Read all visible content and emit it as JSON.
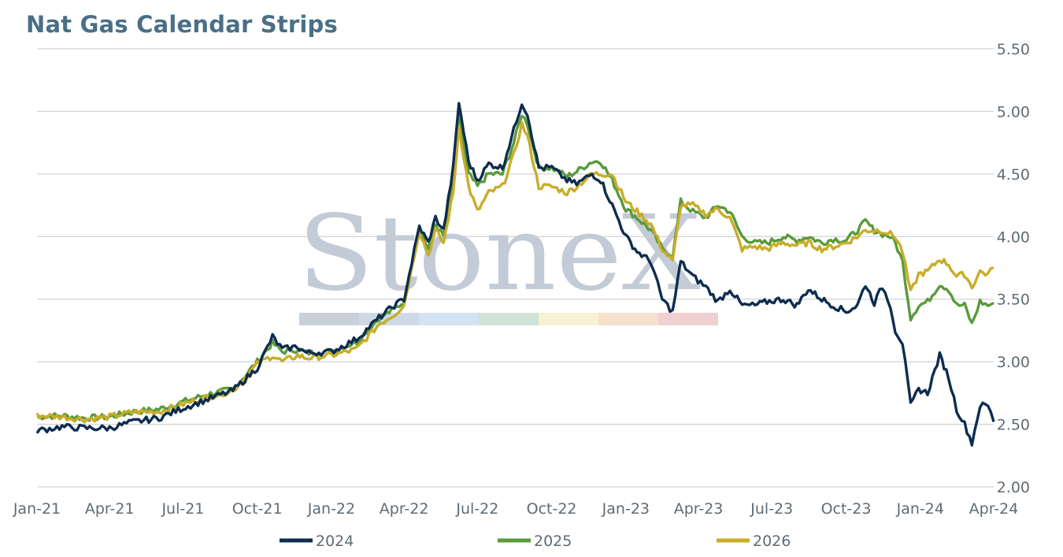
{
  "title": "Nat Gas Calendar Strips",
  "watermark": {
    "brand": "StoneX"
  },
  "colors": {
    "s2024": "#0d2d4f",
    "s2025": "#5a9a3c",
    "s2026": "#c8ad2a",
    "grid": "#d0d4d8",
    "watermark_bar": [
      "#c9d0da",
      "#cfd9e6",
      "#d3e3f3",
      "#d1e3d6",
      "#f6f2d4",
      "#f6e1cc",
      "#f1d0d2"
    ]
  },
  "chart_data": {
    "type": "line",
    "title": "Nat Gas Calendar Strips",
    "xlabel": "",
    "ylabel": "",
    "x_ticks": [
      "Jan-21",
      "Apr-21",
      "Jul-21",
      "Oct-21",
      "Jan-22",
      "Apr-22",
      "Jul-22",
      "Oct-22",
      "Jan-23",
      "Apr-23",
      "Jul-23",
      "Oct-23",
      "Jan-24",
      "Apr-24"
    ],
    "y_ticks": [
      "2.00",
      "2.50",
      "3.00",
      "3.50",
      "4.00",
      "4.50",
      "5.00",
      "5.50"
    ],
    "ylim": [
      2.0,
      5.5
    ],
    "y_axis_side": "right",
    "grid": true,
    "legend_position": "bottom",
    "series": [
      {
        "name": "2024",
        "points": [
          [
            "2021-01-01",
            2.45
          ],
          [
            "2021-02-01",
            2.48
          ],
          [
            "2021-03-01",
            2.47
          ],
          [
            "2021-04-01",
            2.47
          ],
          [
            "2021-05-01",
            2.52
          ],
          [
            "2021-06-01",
            2.55
          ],
          [
            "2021-07-01",
            2.63
          ],
          [
            "2021-08-01",
            2.7
          ],
          [
            "2021-09-01",
            2.77
          ],
          [
            "2021-10-01",
            2.95
          ],
          [
            "2021-10-20",
            3.2
          ],
          [
            "2021-11-01",
            3.1
          ],
          [
            "2021-11-20",
            3.12
          ],
          [
            "2021-12-01",
            3.07
          ],
          [
            "2022-01-01",
            3.08
          ],
          [
            "2022-02-01",
            3.18
          ],
          [
            "2022-03-01",
            3.35
          ],
          [
            "2022-03-20",
            3.45
          ],
          [
            "2022-04-01",
            3.5
          ],
          [
            "2022-04-20",
            4.08
          ],
          [
            "2022-05-01",
            3.95
          ],
          [
            "2022-05-10",
            4.15
          ],
          [
            "2022-05-20",
            4.05
          ],
          [
            "2022-06-01",
            4.55
          ],
          [
            "2022-06-08",
            5.07
          ],
          [
            "2022-06-20",
            4.6
          ],
          [
            "2022-07-01",
            4.45
          ],
          [
            "2022-07-15",
            4.58
          ],
          [
            "2022-08-01",
            4.55
          ],
          [
            "2022-08-15",
            4.85
          ],
          [
            "2022-08-25",
            5.07
          ],
          [
            "2022-09-01",
            4.98
          ],
          [
            "2022-09-15",
            4.55
          ],
          [
            "2022-10-01",
            4.55
          ],
          [
            "2022-10-20",
            4.45
          ],
          [
            "2022-11-01",
            4.42
          ],
          [
            "2022-11-20",
            4.5
          ],
          [
            "2022-12-01",
            4.45
          ],
          [
            "2022-12-15",
            4.25
          ],
          [
            "2023-01-01",
            4.0
          ],
          [
            "2023-01-15",
            3.88
          ],
          [
            "2023-02-01",
            3.8
          ],
          [
            "2023-02-15",
            3.5
          ],
          [
            "2023-02-28",
            3.4
          ],
          [
            "2023-03-10",
            3.8
          ],
          [
            "2023-03-25",
            3.68
          ],
          [
            "2023-04-10",
            3.6
          ],
          [
            "2023-04-25",
            3.48
          ],
          [
            "2023-05-10",
            3.58
          ],
          [
            "2023-05-25",
            3.45
          ],
          [
            "2023-06-10",
            3.45
          ],
          [
            "2023-06-25",
            3.48
          ],
          [
            "2023-07-15",
            3.5
          ],
          [
            "2023-08-01",
            3.45
          ],
          [
            "2023-08-15",
            3.58
          ],
          [
            "2023-09-01",
            3.5
          ],
          [
            "2023-09-15",
            3.45
          ],
          [
            "2023-10-01",
            3.4
          ],
          [
            "2023-10-15",
            3.45
          ],
          [
            "2023-10-25",
            3.62
          ],
          [
            "2023-11-05",
            3.47
          ],
          [
            "2023-11-15",
            3.6
          ],
          [
            "2023-11-25",
            3.45
          ],
          [
            "2023-12-01",
            3.25
          ],
          [
            "2023-12-10",
            3.15
          ],
          [
            "2023-12-20",
            2.65
          ],
          [
            "2023-12-30",
            2.78
          ],
          [
            "2024-01-10",
            2.75
          ],
          [
            "2024-01-25",
            3.05
          ],
          [
            "2024-02-05",
            2.88
          ],
          [
            "2024-02-15",
            2.62
          ],
          [
            "2024-02-25",
            2.5
          ],
          [
            "2024-03-05",
            2.35
          ],
          [
            "2024-03-15",
            2.65
          ],
          [
            "2024-03-25",
            2.65
          ],
          [
            "2024-04-01",
            2.52
          ]
        ]
      },
      {
        "name": "2025",
        "points": [
          [
            "2021-01-01",
            2.56
          ],
          [
            "2021-02-01",
            2.57
          ],
          [
            "2021-03-01",
            2.55
          ],
          [
            "2021-04-01",
            2.56
          ],
          [
            "2021-05-01",
            2.6
          ],
          [
            "2021-06-01",
            2.62
          ],
          [
            "2021-07-01",
            2.68
          ],
          [
            "2021-08-01",
            2.74
          ],
          [
            "2021-09-01",
            2.78
          ],
          [
            "2021-10-01",
            3.0
          ],
          [
            "2021-10-20",
            3.15
          ],
          [
            "2021-11-01",
            3.08
          ],
          [
            "2021-11-20",
            3.1
          ],
          [
            "2021-12-01",
            3.07
          ],
          [
            "2022-01-01",
            3.08
          ],
          [
            "2022-02-01",
            3.16
          ],
          [
            "2022-03-01",
            3.35
          ],
          [
            "2022-03-20",
            3.42
          ],
          [
            "2022-04-01",
            3.48
          ],
          [
            "2022-04-20",
            4.07
          ],
          [
            "2022-05-01",
            3.9
          ],
          [
            "2022-05-10",
            4.1
          ],
          [
            "2022-05-20",
            4.0
          ],
          [
            "2022-06-01",
            4.45
          ],
          [
            "2022-06-08",
            4.98
          ],
          [
            "2022-06-20",
            4.5
          ],
          [
            "2022-07-01",
            4.4
          ],
          [
            "2022-07-15",
            4.5
          ],
          [
            "2022-08-01",
            4.5
          ],
          [
            "2022-08-15",
            4.75
          ],
          [
            "2022-08-25",
            4.98
          ],
          [
            "2022-09-01",
            4.9
          ],
          [
            "2022-09-15",
            4.55
          ],
          [
            "2022-10-01",
            4.55
          ],
          [
            "2022-10-20",
            4.48
          ],
          [
            "2022-11-01",
            4.52
          ],
          [
            "2022-11-20",
            4.6
          ],
          [
            "2022-12-01",
            4.6
          ],
          [
            "2022-12-15",
            4.45
          ],
          [
            "2023-01-01",
            4.22
          ],
          [
            "2023-01-15",
            4.15
          ],
          [
            "2023-02-01",
            4.05
          ],
          [
            "2023-02-15",
            3.9
          ],
          [
            "2023-02-28",
            3.85
          ],
          [
            "2023-03-10",
            4.28
          ],
          [
            "2023-03-25",
            4.2
          ],
          [
            "2023-04-10",
            4.15
          ],
          [
            "2023-04-25",
            4.25
          ],
          [
            "2023-05-10",
            4.2
          ],
          [
            "2023-05-25",
            4.0
          ],
          [
            "2023-06-10",
            3.95
          ],
          [
            "2023-06-25",
            3.95
          ],
          [
            "2023-07-15",
            4.0
          ],
          [
            "2023-08-01",
            3.97
          ],
          [
            "2023-08-15",
            4.0
          ],
          [
            "2023-09-01",
            3.95
          ],
          [
            "2023-09-15",
            3.98
          ],
          [
            "2023-10-01",
            3.97
          ],
          [
            "2023-10-15",
            4.05
          ],
          [
            "2023-10-25",
            4.12
          ],
          [
            "2023-11-05",
            4.05
          ],
          [
            "2023-11-15",
            4.02
          ],
          [
            "2023-11-25",
            4.0
          ],
          [
            "2023-12-01",
            3.95
          ],
          [
            "2023-12-10",
            3.8
          ],
          [
            "2023-12-20",
            3.35
          ],
          [
            "2023-12-30",
            3.45
          ],
          [
            "2024-01-10",
            3.48
          ],
          [
            "2024-01-25",
            3.62
          ],
          [
            "2024-02-05",
            3.58
          ],
          [
            "2024-02-15",
            3.45
          ],
          [
            "2024-02-25",
            3.45
          ],
          [
            "2024-03-05",
            3.3
          ],
          [
            "2024-03-15",
            3.48
          ],
          [
            "2024-03-25",
            3.45
          ],
          [
            "2024-04-01",
            3.47
          ]
        ]
      },
      {
        "name": "2026",
        "points": [
          [
            "2021-01-01",
            2.57
          ],
          [
            "2021-02-01",
            2.56
          ],
          [
            "2021-03-01",
            2.54
          ],
          [
            "2021-04-01",
            2.56
          ],
          [
            "2021-05-01",
            2.6
          ],
          [
            "2021-06-01",
            2.6
          ],
          [
            "2021-07-01",
            2.66
          ],
          [
            "2021-08-01",
            2.72
          ],
          [
            "2021-09-01",
            2.77
          ],
          [
            "2021-10-01",
            2.98
          ],
          [
            "2021-10-20",
            3.05
          ],
          [
            "2021-11-01",
            3.0
          ],
          [
            "2021-11-20",
            3.05
          ],
          [
            "2021-12-01",
            3.03
          ],
          [
            "2022-01-01",
            3.05
          ],
          [
            "2022-02-01",
            3.1
          ],
          [
            "2022-03-01",
            3.3
          ],
          [
            "2022-03-20",
            3.38
          ],
          [
            "2022-04-01",
            3.45
          ],
          [
            "2022-04-20",
            4.05
          ],
          [
            "2022-05-01",
            3.85
          ],
          [
            "2022-05-10",
            4.05
          ],
          [
            "2022-05-20",
            3.95
          ],
          [
            "2022-06-01",
            4.35
          ],
          [
            "2022-06-08",
            4.88
          ],
          [
            "2022-06-20",
            4.4
          ],
          [
            "2022-07-01",
            4.2
          ],
          [
            "2022-07-15",
            4.35
          ],
          [
            "2022-08-01",
            4.4
          ],
          [
            "2022-08-15",
            4.65
          ],
          [
            "2022-08-25",
            4.9
          ],
          [
            "2022-09-01",
            4.8
          ],
          [
            "2022-09-15",
            4.4
          ],
          [
            "2022-10-01",
            4.4
          ],
          [
            "2022-10-20",
            4.35
          ],
          [
            "2022-11-01",
            4.4
          ],
          [
            "2022-11-20",
            4.5
          ],
          [
            "2022-12-01",
            4.5
          ],
          [
            "2022-12-15",
            4.5
          ],
          [
            "2023-01-01",
            4.28
          ],
          [
            "2023-01-15",
            4.2
          ],
          [
            "2023-02-01",
            4.1
          ],
          [
            "2023-02-15",
            3.9
          ],
          [
            "2023-02-28",
            3.8
          ],
          [
            "2023-03-10",
            4.25
          ],
          [
            "2023-03-25",
            4.25
          ],
          [
            "2023-04-10",
            4.18
          ],
          [
            "2023-04-25",
            4.22
          ],
          [
            "2023-05-10",
            4.15
          ],
          [
            "2023-05-25",
            3.9
          ],
          [
            "2023-06-10",
            3.92
          ],
          [
            "2023-06-25",
            3.9
          ],
          [
            "2023-07-15",
            3.95
          ],
          [
            "2023-08-01",
            3.93
          ],
          [
            "2023-08-15",
            3.95
          ],
          [
            "2023-09-01",
            3.9
          ],
          [
            "2023-09-15",
            3.92
          ],
          [
            "2023-10-01",
            3.95
          ],
          [
            "2023-10-15",
            4.0
          ],
          [
            "2023-10-25",
            4.05
          ],
          [
            "2023-11-05",
            4.05
          ],
          [
            "2023-11-15",
            4.05
          ],
          [
            "2023-11-25",
            4.02
          ],
          [
            "2023-12-01",
            4.0
          ],
          [
            "2023-12-10",
            3.88
          ],
          [
            "2023-12-20",
            3.55
          ],
          [
            "2023-12-30",
            3.7
          ],
          [
            "2024-01-10",
            3.72
          ],
          [
            "2024-01-25",
            3.82
          ],
          [
            "2024-02-05",
            3.78
          ],
          [
            "2024-02-15",
            3.68
          ],
          [
            "2024-02-25",
            3.7
          ],
          [
            "2024-03-05",
            3.6
          ],
          [
            "2024-03-15",
            3.72
          ],
          [
            "2024-03-25",
            3.7
          ],
          [
            "2024-04-01",
            3.75
          ]
        ]
      }
    ]
  }
}
